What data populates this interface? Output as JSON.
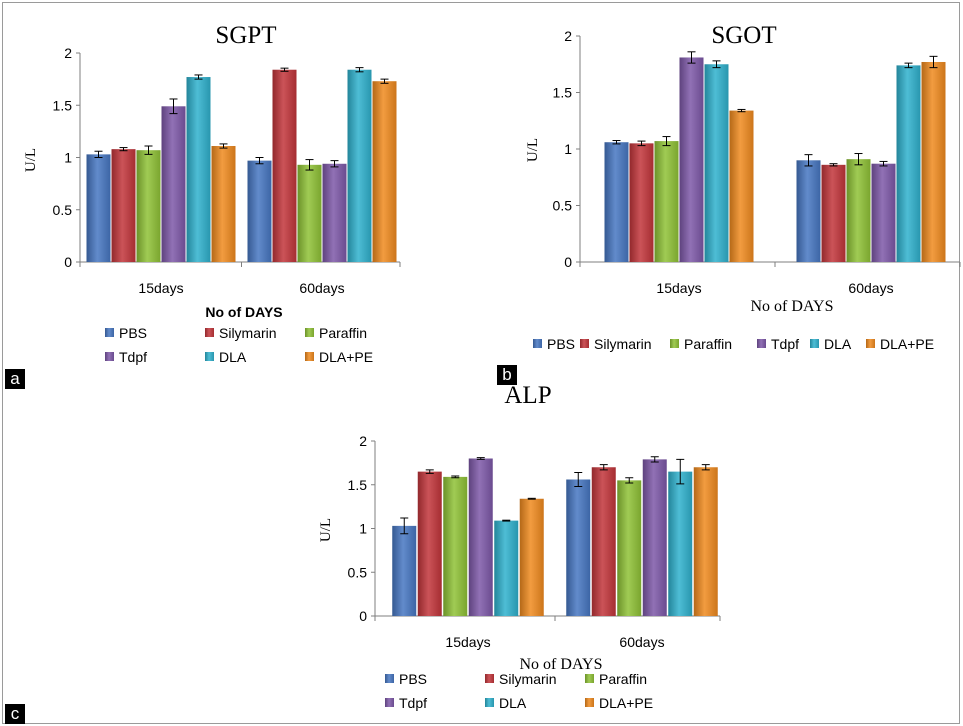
{
  "colors": {
    "PBS": "#4677c2",
    "Silymarin": "#c2353a",
    "Paraffin": "#8fc236",
    "Tdpf": "#7d58a8",
    "DLA": "#2fb1cd",
    "DLA+PE": "#f08a1e"
  },
  "panel_labels": [
    "a",
    "b",
    "c"
  ],
  "chart_data": [
    {
      "type": "bar",
      "title": "SGPT",
      "xlabel": "No of DAYS",
      "ylabel": "U/L",
      "ylim": [
        0,
        2
      ],
      "yticks": [
        "0",
        "0.5",
        "1",
        "1.5",
        "2"
      ],
      "categories": [
        "15days",
        "60days"
      ],
      "legend": "bottom",
      "series": [
        {
          "name": "PBS",
          "values": [
            1.03,
            0.97
          ],
          "errors": [
            0.03,
            0.03
          ]
        },
        {
          "name": "Silymarin",
          "values": [
            1.08,
            1.84
          ],
          "errors": [
            0.015,
            0.015
          ]
        },
        {
          "name": "Paraffin",
          "values": [
            1.07,
            0.93
          ],
          "errors": [
            0.04,
            0.05
          ]
        },
        {
          "name": "Tdpf",
          "values": [
            1.49,
            0.94
          ],
          "errors": [
            0.07,
            0.03
          ]
        },
        {
          "name": "DLA",
          "values": [
            1.77,
            1.84
          ],
          "errors": [
            0.02,
            0.02
          ]
        },
        {
          "name": "DLA+PE",
          "values": [
            1.11,
            1.73
          ],
          "errors": [
            0.02,
            0.02
          ]
        }
      ]
    },
    {
      "type": "bar",
      "title": "SGOT",
      "xlabel": "No of DAYS",
      "ylabel": "U/L",
      "ylim": [
        0,
        2
      ],
      "yticks": [
        "0",
        "0.5",
        "1",
        "1.5",
        "2"
      ],
      "categories": [
        "15days",
        "60days"
      ],
      "legend": "bottom",
      "series": [
        {
          "name": "PBS",
          "values": [
            1.06,
            0.9
          ],
          "errors": [
            0.015,
            0.05
          ]
        },
        {
          "name": "Silymarin",
          "values": [
            1.05,
            0.86
          ],
          "errors": [
            0.02,
            0.01
          ]
        },
        {
          "name": "Paraffin",
          "values": [
            1.07,
            0.91
          ],
          "errors": [
            0.04,
            0.05
          ]
        },
        {
          "name": "Tdpf",
          "values": [
            1.81,
            0.87
          ],
          "errors": [
            0.05,
            0.02
          ]
        },
        {
          "name": "DLA",
          "values": [
            1.75,
            1.74
          ],
          "errors": [
            0.03,
            0.02
          ]
        },
        {
          "name": "DLA+PE",
          "values": [
            1.34,
            1.77
          ],
          "errors": [
            0.01,
            0.05
          ]
        }
      ]
    },
    {
      "type": "bar",
      "title": "ALP",
      "xlabel": "No of DAYS",
      "ylabel": "U/L",
      "ylim": [
        0,
        2
      ],
      "yticks": [
        "0",
        "0.5",
        "1",
        "1.5",
        "2"
      ],
      "categories": [
        "15days",
        "60days"
      ],
      "legend": "bottom",
      "series": [
        {
          "name": "PBS",
          "values": [
            1.03,
            1.56
          ],
          "errors": [
            0.09,
            0.08
          ]
        },
        {
          "name": "Silymarin",
          "values": [
            1.65,
            1.7
          ],
          "errors": [
            0.02,
            0.03
          ]
        },
        {
          "name": "Paraffin",
          "values": [
            1.59,
            1.55
          ],
          "errors": [
            0.01,
            0.03
          ]
        },
        {
          "name": "Tdpf",
          "values": [
            1.8,
            1.79
          ],
          "errors": [
            0.01,
            0.03
          ]
        },
        {
          "name": "DLA",
          "values": [
            1.09,
            1.65
          ],
          "errors": [
            0.005,
            0.14
          ]
        },
        {
          "name": "DLA+PE",
          "values": [
            1.34,
            1.7
          ],
          "errors": [
            0.005,
            0.03
          ]
        }
      ]
    }
  ]
}
